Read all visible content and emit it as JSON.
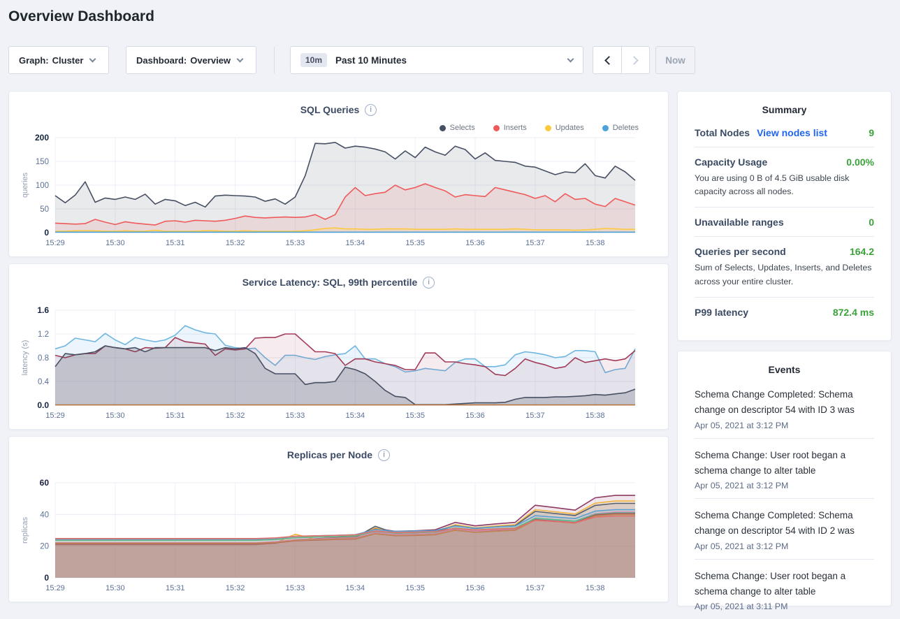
{
  "page": {
    "title": "Overview Dashboard"
  },
  "colors": {
    "accent_green": "#3ba13a",
    "link_blue": "#2065f2",
    "label_navy": "#3b4a63",
    "text_dark": "#242a35"
  },
  "icons": {
    "info": "i"
  },
  "toolbar": {
    "graph_dropdown": {
      "label": "Graph:",
      "value": "Cluster"
    },
    "dashboard_dropdown": {
      "label": "Dashboard:",
      "value": "Overview"
    },
    "time_selector": {
      "badge": "10m",
      "value": "Past 10 Minutes"
    },
    "now_label": "Now"
  },
  "summary": {
    "title": "Summary",
    "rows": [
      {
        "label": "Total Nodes",
        "link": "View nodes list",
        "value": "9"
      },
      {
        "label": "Capacity Usage",
        "value": "0.00%",
        "desc": "You are using 0 B of 4.5 GiB usable disk capacity across all nodes."
      },
      {
        "label": "Unavailable ranges",
        "value": "0"
      },
      {
        "label": "Queries per second",
        "value": "164.2",
        "desc": "Sum of Selects, Updates, Inserts, and Deletes across your entire cluster."
      },
      {
        "label": "P99 latency",
        "value": "872.4 ms"
      }
    ]
  },
  "events": {
    "title": "Events",
    "items": [
      {
        "text": "Schema Change Completed: Schema change on descriptor 54 with ID 3 was",
        "time": "Apr 05, 2021 at 3:12 PM"
      },
      {
        "text": "Schema Change: User root began a schema change to alter table",
        "time": "Apr 05, 2021 at 3:12 PM"
      },
      {
        "text": "Schema Change Completed: Schema change on descriptor 54 with ID 2 was",
        "time": "Apr 05, 2021 at 3:12 PM"
      },
      {
        "text": "Schema Change: User root began a schema change to alter table",
        "time": "Apr 05, 2021 at 3:11 PM"
      }
    ]
  },
  "chart_data": [
    {
      "type": "area",
      "title": "SQL Queries",
      "ylabel": "queries",
      "ylim": [
        0,
        200
      ],
      "yticks": [
        "0",
        "50",
        "100",
        "150",
        "200"
      ],
      "xticks": [
        "15:29",
        "15:30",
        "15:31",
        "15:32",
        "15:33",
        "15:34",
        "15:35",
        "15:36",
        "15:37",
        "15:38"
      ],
      "x_total_seconds": 580,
      "xtick_interval_seconds": 60,
      "legend": true,
      "grid": true,
      "series": [
        {
          "name": "Selects",
          "color": "#475063",
          "fill_opacity": 0.12,
          "values": [
            78,
            63,
            79,
            107,
            64,
            73,
            70,
            75,
            70,
            81,
            60,
            70,
            67,
            57,
            64,
            54,
            77,
            79,
            78,
            77,
            75,
            66,
            71,
            60,
            75,
            120,
            188,
            187,
            190,
            178,
            182,
            180,
            176,
            170,
            155,
            172,
            158,
            180,
            170,
            163,
            182,
            175,
            155,
            168,
            152,
            150,
            148,
            140,
            138,
            130,
            122,
            128,
            126,
            145,
            120,
            115,
            140,
            128,
            110
          ]
        },
        {
          "name": "Inserts",
          "color": "#ef5a5a",
          "fill_opacity": 0.12,
          "values": [
            20,
            19,
            18,
            19,
            28,
            22,
            17,
            23,
            20,
            18,
            16,
            24,
            25,
            22,
            26,
            25,
            24,
            26,
            30,
            35,
            32,
            31,
            32,
            33,
            32,
            33,
            38,
            28,
            38,
            75,
            95,
            78,
            82,
            85,
            100,
            90,
            95,
            103,
            95,
            88,
            75,
            80,
            78,
            76,
            95,
            90,
            85,
            80,
            72,
            78,
            65,
            82,
            70,
            72,
            60,
            55,
            72,
            65,
            58
          ]
        },
        {
          "name": "Updates",
          "color": "#fdca3f",
          "fill_opacity": 0.15,
          "values": [
            3,
            3,
            4,
            4,
            4,
            3,
            3,
            4,
            3,
            3,
            5,
            3,
            3,
            3,
            3,
            4,
            4,
            3,
            3,
            4,
            3,
            3,
            3,
            3,
            3,
            4,
            6,
            9,
            10,
            8,
            8,
            7,
            7,
            8,
            8,
            8,
            7,
            7,
            7,
            7,
            8,
            7,
            7,
            7,
            7,
            7,
            8,
            7,
            6,
            6,
            6,
            6,
            5,
            6,
            7,
            9,
            8,
            7,
            7
          ]
        },
        {
          "name": "Deletes",
          "color": "#4ca3d9",
          "fill_opacity": 0.15,
          "values": [
            1,
            1,
            1,
            1,
            1,
            1,
            1,
            1,
            1,
            1,
            1,
            1,
            1,
            1,
            1,
            1,
            1,
            1,
            1,
            1,
            1,
            1,
            1,
            1,
            1,
            1,
            1,
            1,
            1,
            1,
            1,
            1,
            1,
            1,
            1,
            1,
            1,
            1,
            1,
            1,
            1,
            1,
            1,
            1,
            1,
            1,
            1,
            1,
            1,
            1,
            1,
            1,
            1,
            1,
            1,
            1,
            1,
            1,
            1
          ]
        }
      ]
    },
    {
      "type": "area",
      "title": "Service Latency: SQL, 99th percentile",
      "ylabel": "latency (s)",
      "ylim": [
        0,
        1.6
      ],
      "yticks": [
        "0.0",
        "0.4",
        "0.8",
        "1.2",
        "1.6"
      ],
      "xticks": [
        "15:29",
        "15:30",
        "15:31",
        "15:32",
        "15:33",
        "15:34",
        "15:35",
        "15:36",
        "15:37",
        "15:38"
      ],
      "x_total_seconds": 580,
      "xtick_interval_seconds": 60,
      "legend": false,
      "grid": true,
      "series": [
        {
          "color": "#6fb6e0",
          "fill_opacity": 0.14,
          "values": [
            0.95,
            1.0,
            1.13,
            1.1,
            1.07,
            1.21,
            1.1,
            1.02,
            1.14,
            1.1,
            1.07,
            1.1,
            1.18,
            1.34,
            1.27,
            1.22,
            1.2,
            1.01,
            0.97,
            0.95,
            0.96,
            0.8,
            0.67,
            0.84,
            0.84,
            0.8,
            0.77,
            0.82,
            0.85,
            0.87,
            1.0,
            0.78,
            0.78,
            0.7,
            0.65,
            0.56,
            0.58,
            0.62,
            0.6,
            0.58,
            0.72,
            0.78,
            0.78,
            0.65,
            0.65,
            0.68,
            0.85,
            0.9,
            0.88,
            0.85,
            0.8,
            0.82,
            0.92,
            0.92,
            0.9,
            0.55,
            0.6,
            0.62,
            0.95
          ]
        },
        {
          "color": "#a23b58",
          "fill_opacity": 0.1,
          "values": [
            0.84,
            0.8,
            0.85,
            0.87,
            0.87,
            1.0,
            0.97,
            0.95,
            0.9,
            0.97,
            0.96,
            0.97,
            1.14,
            1.07,
            1.05,
            1.03,
            0.84,
            0.95,
            0.93,
            0.95,
            1.13,
            1.14,
            1.14,
            1.2,
            1.2,
            1.05,
            0.9,
            0.9,
            0.87,
            0.67,
            0.78,
            0.78,
            0.73,
            0.7,
            0.67,
            0.6,
            0.6,
            0.88,
            0.88,
            0.73,
            0.73,
            0.7,
            0.68,
            0.65,
            0.52,
            0.5,
            0.62,
            0.78,
            0.72,
            0.68,
            0.62,
            0.65,
            0.8,
            0.72,
            0.75,
            0.78,
            0.75,
            0.78,
            0.92
          ]
        },
        {
          "color": "#475063",
          "fill_opacity": 0.22,
          "values": [
            0.65,
            0.87,
            0.85,
            0.87,
            0.9,
            1.0,
            0.97,
            0.95,
            0.97,
            0.9,
            0.97,
            0.97,
            0.97,
            0.97,
            0.97,
            0.97,
            0.92,
            0.97,
            0.95,
            0.97,
            0.87,
            0.62,
            0.53,
            0.53,
            0.53,
            0.35,
            0.38,
            0.38,
            0.4,
            0.64,
            0.6,
            0.53,
            0.4,
            0.25,
            0.15,
            0.13,
            0.01,
            0.01,
            0.01,
            0.01,
            0.02,
            0.03,
            0.04,
            0.04,
            0.04,
            0.05,
            0.1,
            0.13,
            0.13,
            0.13,
            0.14,
            0.14,
            0.15,
            0.16,
            0.18,
            0.17,
            0.19,
            0.21,
            0.27
          ]
        },
        {
          "color": "#b5763f",
          "fill_opacity": 0,
          "values": [
            0.005,
            0.005,
            0.005,
            0.005,
            0.005,
            0.005,
            0.005,
            0.005,
            0.005,
            0.005,
            0.005,
            0.005,
            0.005,
            0.005,
            0.005,
            0.005,
            0.005,
            0.005,
            0.005,
            0.005,
            0.005,
            0.005,
            0.005,
            0.005,
            0.005,
            0.005,
            0.005,
            0.005,
            0.005,
            0.005,
            0.005,
            0.005,
            0.005,
            0.005,
            0.005,
            0.005,
            0.005,
            0.005,
            0.005,
            0.005,
            0.005,
            0.005,
            0.005,
            0.005,
            0.005,
            0.005,
            0.005,
            0.005,
            0.005,
            0.005,
            0.005,
            0.005,
            0.005,
            0.005,
            0.005,
            0.005,
            0.005,
            0.005,
            0.005
          ]
        }
      ]
    },
    {
      "type": "area",
      "title": "Replicas per Node",
      "ylabel": "replicas",
      "ylim": [
        0,
        60
      ],
      "yticks": [
        "0",
        "20",
        "40",
        "60"
      ],
      "xticks": [
        "15:29",
        "15:30",
        "15:31",
        "15:32",
        "15:33",
        "15:34",
        "15:35",
        "15:36",
        "15:37",
        "15:38"
      ],
      "x_total_seconds": 580,
      "xtick_interval_seconds": 60,
      "legend": false,
      "grid": true,
      "series": [
        {
          "color": "#8e3a62",
          "fill_opacity": 0.13,
          "values": [
            21,
            21,
            21,
            21,
            21,
            21,
            21,
            21,
            21,
            21,
            21,
            21.9,
            24.1,
            24.7,
            25.3,
            26,
            31.2,
            29.4,
            29.7,
            30.3,
            35,
            32.8,
            34,
            35,
            45.8,
            44.3,
            42.7,
            50.5,
            52,
            52
          ]
        },
        {
          "color": "#f0b53e",
          "fill_opacity": 0.13,
          "values": [
            21.2,
            21.2,
            21.2,
            21.2,
            21.2,
            21.2,
            21.2,
            21.2,
            21.2,
            21.2,
            21.2,
            22,
            27.5,
            24.5,
            25,
            25.6,
            31.5,
            28.6,
            28.8,
            29.4,
            33.5,
            31.6,
            32.7,
            33.5,
            43,
            41.7,
            40.3,
            47.1,
            48.5,
            48.5
          ]
        },
        {
          "color": "#555f6d",
          "fill_opacity": 0.13,
          "values": [
            21.3,
            21.3,
            21.3,
            21.3,
            21.3,
            21.3,
            21.3,
            21.3,
            21.3,
            21.3,
            21.3,
            22.1,
            23.9,
            24.4,
            24.9,
            25.4,
            32.5,
            28.2,
            28.5,
            29,
            32.9,
            31.1,
            32.1,
            32.9,
            41.9,
            40.6,
            39.3,
            45.7,
            47,
            47
          ]
        },
        {
          "color": "#5b9fd3",
          "fill_opacity": 0.13,
          "values": [
            24.2,
            24.2,
            24.2,
            24.2,
            24.2,
            24.2,
            24.2,
            24.2,
            24.2,
            24.2,
            24.2,
            24.8,
            26.1,
            26.5,
            26.8,
            27.2,
            30.4,
            29.3,
            29.5,
            29.8,
            32.7,
            31.3,
            32.1,
            32.7,
            39.2,
            38.3,
            37.4,
            42.1,
            43,
            43
          ]
        },
        {
          "color": "#dd87bc",
          "fill_opacity": 0.13,
          "values": [
            22.2,
            22.2,
            22.2,
            22.2,
            22.2,
            22.2,
            22.2,
            22.2,
            22.2,
            22.2,
            22.2,
            22.8,
            24.1,
            24.5,
            24.9,
            25.3,
            28.6,
            27.4,
            27.6,
            28,
            30.9,
            29.5,
            30.3,
            30.9,
            37.6,
            36.7,
            35.7,
            40.5,
            41.5,
            41.5
          ]
        },
        {
          "color": "#52bd8b",
          "fill_opacity": 0.13,
          "values": [
            23.6,
            23.6,
            23.6,
            23.6,
            23.6,
            23.6,
            23.6,
            23.6,
            23.6,
            23.6,
            23.6,
            24.1,
            25.3,
            25.7,
            26,
            26.4,
            29.3,
            28.3,
            28.5,
            28.8,
            31.4,
            30.2,
            30.9,
            31.4,
            37.5,
            36.7,
            35.8,
            40.1,
            41,
            41
          ]
        },
        {
          "color": "#b24a63",
          "fill_opacity": 0.13,
          "values": [
            21.5,
            21.5,
            21.5,
            21.5,
            21.5,
            21.5,
            21.5,
            21.5,
            21.5,
            21.5,
            21.5,
            22.1,
            23.4,
            23.8,
            24.2,
            24.5,
            27.8,
            26.6,
            26.8,
            27.2,
            30.1,
            28.7,
            29.5,
            30.1,
            36.7,
            35.8,
            34.8,
            39.6,
            40.5,
            40.5
          ]
        },
        {
          "color": "#ba8a50",
          "fill_opacity": 0.13,
          "values": [
            21.8,
            21.8,
            21.8,
            21.8,
            21.8,
            21.8,
            21.8,
            21.8,
            21.8,
            21.8,
            21.8,
            22.3,
            23.6,
            24,
            24.4,
            24.7,
            27.8,
            26.7,
            26.9,
            27.3,
            30,
            28.7,
            29.4,
            30,
            36.4,
            35.5,
            34.5,
            39.1,
            40,
            40
          ]
        },
        {
          "color": "#e0716d",
          "fill_opacity": 0.13,
          "values": [
            24.8,
            24.8,
            24.8,
            24.8,
            24.8,
            24.8,
            24.8,
            24.8,
            24.8,
            24.8,
            24.8,
            25.2,
            26.2,
            26.5,
            26.8,
            27.1,
            29.5,
            28.6,
            28.8,
            29.1,
            31.2,
            30.2,
            30.8,
            31.2,
            36.2,
            35.5,
            34.7,
            38.3,
            39,
            39
          ]
        }
      ]
    }
  ]
}
